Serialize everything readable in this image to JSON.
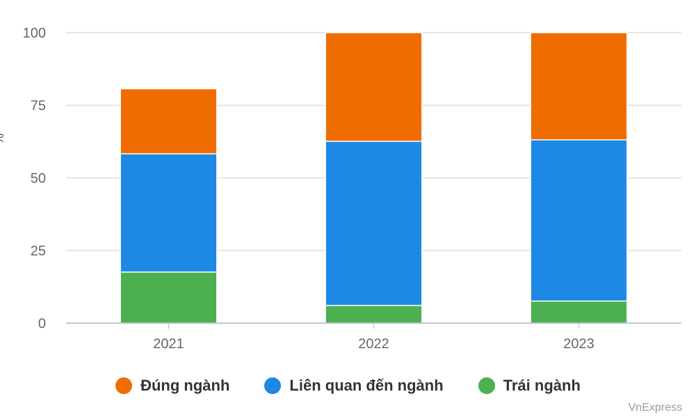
{
  "chart_data": {
    "type": "bar",
    "stacked": true,
    "categories": [
      "2021",
      "2022",
      "2023"
    ],
    "series": [
      {
        "name": "Trái ngành",
        "color": "#4caf50",
        "values": [
          17.6,
          6.1,
          7.6
        ]
      },
      {
        "name": "Liên quan đến ngành",
        "color": "#1e88e5",
        "values": [
          40.7,
          56.5,
          55.5
        ]
      },
      {
        "name": "Đúng ngành",
        "color": "#ef6c00",
        "values": [
          22.4,
          37.4,
          36.9
        ]
      }
    ],
    "legend_order": [
      2,
      1,
      0
    ],
    "legend_position": "bottom",
    "ylabel": "%",
    "ylim": [
      0,
      100
    ],
    "yticks": [
      0,
      25,
      50,
      75,
      100
    ],
    "grid": true
  },
  "source": "VnExpress"
}
